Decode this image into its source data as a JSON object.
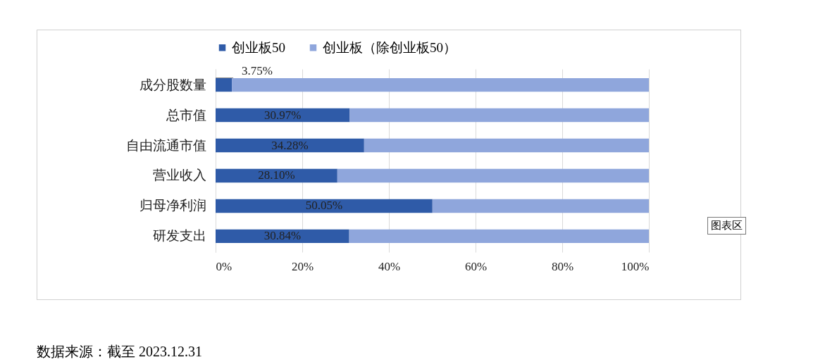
{
  "chart_data": {
    "type": "bar",
    "orientation": "horizontal",
    "stacked": true,
    "categories": [
      "成分股数量",
      "总市值",
      "自由流通市值",
      "营业收入",
      "归母净利润",
      "研发支出"
    ],
    "series": [
      {
        "name": "创业板50",
        "color": "#2f5ba8",
        "values": [
          3.75,
          30.97,
          34.28,
          28.1,
          50.05,
          30.84
        ],
        "value_labels": [
          "3.75%",
          "30.97%",
          "34.28%",
          "28.10%",
          "50.05%",
          "30.84%"
        ]
      },
      {
        "name": "创业板（除创业板50）",
        "color": "#8fa6dc",
        "values": [
          96.25,
          69.03,
          65.72,
          71.9,
          49.95,
          69.16
        ]
      }
    ],
    "xlim": [
      0,
      100
    ],
    "xticks": [
      {
        "value": 0,
        "label": "0%"
      },
      {
        "value": 20,
        "label": "20%"
      },
      {
        "value": 40,
        "label": "40%"
      },
      {
        "value": 60,
        "label": "60%"
      },
      {
        "value": 80,
        "label": "80%"
      },
      {
        "value": 100,
        "label": "100%"
      }
    ],
    "grid": "x",
    "legend": "top",
    "annotations": [
      "图表区",
      "数据来源：截至 2023.12.31"
    ]
  }
}
